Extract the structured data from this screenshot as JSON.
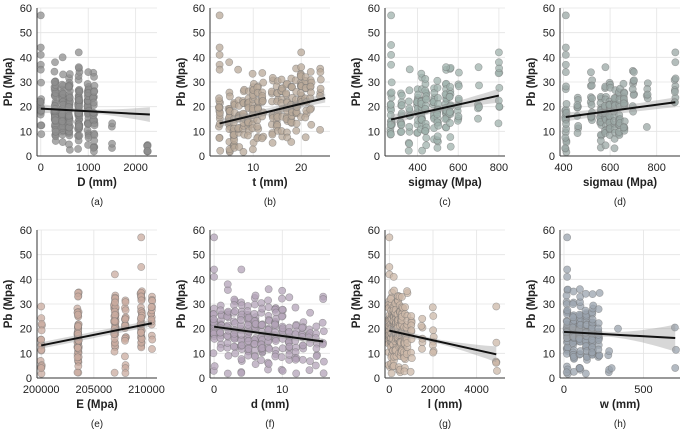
{
  "figure": {
    "ylabel": "Pb (Mpa)"
  },
  "chart_data": [
    {
      "type": "scatter",
      "panel": "(a)",
      "xlabel": "D (mm)",
      "ylabel": "Pb (Mpa)",
      "xlim": [
        -80,
        2450
      ],
      "ylim": [
        0,
        60
      ],
      "xticks": [
        0,
        1000,
        2000
      ],
      "yticks": [
        0,
        10,
        20,
        30,
        40,
        50,
        60
      ],
      "dot_color": "#8e8e8e",
      "clusters": [
        [
          0,
          20,
          15
        ],
        [
          300,
          20,
          48
        ],
        [
          460,
          18,
          45
        ],
        [
          600,
          18,
          42
        ],
        [
          800,
          19,
          55
        ],
        [
          1000,
          19,
          40
        ],
        [
          1120,
          18,
          25
        ],
        [
          1500,
          5,
          4
        ],
        [
          2250,
          3,
          4
        ]
      ],
      "points": [
        [
          0,
          57
        ],
        [
          0,
          44
        ],
        [
          0,
          41
        ],
        [
          0,
          37
        ],
        [
          0,
          35
        ],
        [
          300,
          38
        ],
        [
          460,
          40
        ],
        [
          800,
          42
        ],
        [
          800,
          36
        ],
        [
          1000,
          34
        ],
        [
          1120,
          26
        ],
        [
          2250,
          4
        ],
        [
          2250,
          2
        ]
      ],
      "fit": [
        [
          0,
          19.2
        ],
        [
          2300,
          16.8
        ]
      ],
      "ci": [
        0.7,
        3.0
      ]
    },
    {
      "type": "scatter",
      "panel": "(b)",
      "xlabel": "t (mm)",
      "ylabel": "Pb (Mpa)",
      "xlim": [
        1,
        26
      ],
      "ylim": [
        0,
        60
      ],
      "xticks": [
        10,
        20
      ],
      "yticks": [
        0,
        10,
        20,
        30,
        40,
        50,
        60
      ],
      "dot_color": "#b8a898",
      "clusters": [
        [
          3,
          14,
          15
        ],
        [
          5,
          12,
          18
        ],
        [
          6,
          13,
          18
        ],
        [
          7,
          14,
          12
        ],
        [
          8,
          16,
          15
        ],
        [
          9,
          17,
          15
        ],
        [
          10,
          18,
          18
        ],
        [
          11,
          19,
          15
        ],
        [
          12,
          20,
          12
        ],
        [
          14,
          18,
          12
        ],
        [
          15,
          18,
          15
        ],
        [
          16,
          19,
          12
        ],
        [
          17,
          19,
          15
        ],
        [
          18,
          20,
          15
        ],
        [
          19,
          21,
          15
        ],
        [
          20,
          22,
          15
        ],
        [
          21,
          23,
          12
        ],
        [
          22,
          23,
          10
        ],
        [
          24,
          24,
          6
        ]
      ],
      "points": [
        [
          3,
          57
        ],
        [
          3,
          44
        ],
        [
          3,
          41
        ],
        [
          3,
          37
        ],
        [
          3,
          35
        ],
        [
          5,
          38
        ],
        [
          20,
          42
        ],
        [
          20,
          36
        ],
        [
          24,
          34
        ]
      ],
      "fit": [
        [
          3,
          13.2
        ],
        [
          25,
          23.5
        ]
      ],
      "ci": [
        1.4,
        1.8
      ]
    },
    {
      "type": "scatter",
      "panel": "(c)",
      "xlabel": "sigmay (Mpa)",
      "ylabel": "Pb (Mpa)",
      "xlim": [
        240,
        830
      ],
      "ylim": [
        0,
        60
      ],
      "xticks": [
        400,
        600,
        800
      ],
      "yticks": [
        0,
        10,
        20,
        30,
        40,
        50,
        60
      ],
      "dot_color": "#9fb2ac",
      "clusters": [
        [
          270,
          15,
          20
        ],
        [
          320,
          15,
          14
        ],
        [
          360,
          18,
          12
        ],
        [
          400,
          18,
          14
        ],
        [
          420,
          19,
          20
        ],
        [
          440,
          20,
          18
        ],
        [
          480,
          20,
          14
        ],
        [
          500,
          18,
          18
        ],
        [
          540,
          19,
          22
        ],
        [
          560,
          20,
          16
        ],
        [
          600,
          20,
          10
        ],
        [
          700,
          23,
          6
        ],
        [
          800,
          25,
          8
        ]
      ],
      "points": [
        [
          270,
          57
        ],
        [
          270,
          45
        ],
        [
          270,
          41
        ],
        [
          270,
          37
        ],
        [
          800,
          42
        ],
        [
          800,
          38
        ],
        [
          700,
          36
        ],
        [
          540,
          36
        ]
      ],
      "fit": [
        [
          270,
          14.8
        ],
        [
          800,
          24.5
        ]
      ],
      "ci": [
        1.2,
        2.8
      ]
    },
    {
      "type": "scatter",
      "panel": "(d)",
      "xlabel": "sigmau (Mpa)",
      "ylabel": "Pb (Mpa)",
      "xlim": [
        385,
        900
      ],
      "ylim": [
        0,
        60
      ],
      "xticks": [
        400,
        600,
        800
      ],
      "yticks": [
        0,
        10,
        20,
        30,
        40,
        50,
        60
      ],
      "dot_color": "#9aa7a4",
      "clusters": [
        [
          410,
          14,
          20
        ],
        [
          460,
          16,
          10
        ],
        [
          520,
          17,
          14
        ],
        [
          560,
          18,
          18
        ],
        [
          580,
          17,
          20
        ],
        [
          600,
          18,
          22
        ],
        [
          620,
          18,
          16
        ],
        [
          640,
          19,
          16
        ],
        [
          660,
          20,
          14
        ],
        [
          700,
          22,
          10
        ],
        [
          760,
          23,
          6
        ],
        [
          880,
          22,
          8
        ]
      ],
      "points": [
        [
          410,
          57
        ],
        [
          410,
          44
        ],
        [
          410,
          41
        ],
        [
          410,
          37
        ],
        [
          410,
          34
        ],
        [
          880,
          42
        ],
        [
          880,
          38
        ],
        [
          580,
          36
        ]
      ],
      "fit": [
        [
          410,
          15.8
        ],
        [
          880,
          21.8
        ]
      ],
      "ci": [
        1.5,
        2.0
      ]
    },
    {
      "type": "scatter",
      "panel": "(e)",
      "xlabel": "E (Mpa)",
      "ylabel": "Pb (Mpa)",
      "xlim": [
        199600,
        211000
      ],
      "ylim": [
        0,
        60
      ],
      "xticks": [
        200000,
        205000,
        210000
      ],
      "yticks": [
        0,
        10,
        20,
        30,
        40,
        50,
        60
      ],
      "dot_color": "#c9ab9f",
      "clusters": [
        [
          200000,
          13,
          15
        ],
        [
          203500,
          18,
          60
        ],
        [
          207000,
          20,
          50
        ],
        [
          208000,
          18,
          18
        ],
        [
          209500,
          23,
          35
        ],
        [
          210500,
          22,
          15
        ]
      ],
      "points": [
        [
          200000,
          29
        ],
        [
          200000,
          4
        ],
        [
          203500,
          33
        ],
        [
          207000,
          42
        ],
        [
          209500,
          57
        ],
        [
          209500,
          45
        ],
        [
          208000,
          4
        ],
        [
          208000,
          2
        ]
      ],
      "fit": [
        [
          200000,
          13.2
        ],
        [
          210500,
          22.2
        ]
      ],
      "ci": [
        1.3,
        1.3
      ]
    },
    {
      "type": "scatter",
      "panel": "(f)",
      "xlabel": "d (mm)",
      "ylabel": "Pb (Mpa)",
      "xlim": [
        -0.6,
        17
      ],
      "ylim": [
        0,
        60
      ],
      "xticks": [
        0,
        10
      ],
      "yticks": [
        0,
        10,
        20,
        30,
        40,
        50,
        60
      ],
      "dot_color": "#b3a3b8",
      "clusters": [
        [
          0,
          20,
          20
        ],
        [
          1,
          20,
          16
        ],
        [
          2,
          19,
          16
        ],
        [
          3,
          19,
          18
        ],
        [
          4,
          19,
          20
        ],
        [
          5,
          18,
          22
        ],
        [
          6,
          18,
          22
        ],
        [
          7,
          18,
          20
        ],
        [
          8,
          17,
          20
        ],
        [
          9,
          17,
          18
        ],
        [
          10,
          17,
          16
        ],
        [
          11,
          16,
          14
        ],
        [
          12,
          16,
          12
        ],
        [
          13,
          15,
          10
        ],
        [
          14,
          15,
          8
        ],
        [
          15,
          15,
          8
        ],
        [
          16,
          15,
          6
        ]
      ],
      "points": [
        [
          0,
          57
        ],
        [
          0,
          44
        ],
        [
          0,
          41
        ],
        [
          2,
          38
        ],
        [
          4,
          44
        ],
        [
          8,
          36
        ],
        [
          16,
          33
        ],
        [
          16,
          32
        ]
      ],
      "fit": [
        [
          0,
          20.8
        ],
        [
          16,
          14.8
        ]
      ],
      "ci": [
        1.0,
        1.2
      ]
    },
    {
      "type": "scatter",
      "panel": "(g)",
      "xlabel": "l (mm)",
      "ylabel": "Pb (Mpa)",
      "xlim": [
        -200,
        5300
      ],
      "ylim": [
        0,
        60
      ],
      "xticks": [
        0,
        2000,
        4000
      ],
      "yticks": [
        0,
        10,
        20,
        30,
        40,
        50,
        60
      ],
      "dot_color": "#ccb8a8",
      "clusters": [
        [
          0,
          20,
          30
        ],
        [
          100,
          20,
          40
        ],
        [
          200,
          20,
          40
        ],
        [
          300,
          20,
          35
        ],
        [
          400,
          20,
          30
        ],
        [
          500,
          19,
          25
        ],
        [
          600,
          19,
          20
        ],
        [
          700,
          19,
          18
        ],
        [
          800,
          18,
          15
        ],
        [
          1000,
          18,
          10
        ],
        [
          1500,
          16,
          6
        ],
        [
          2000,
          17,
          8
        ],
        [
          4900,
          12,
          5
        ]
      ],
      "points": [
        [
          0,
          57
        ],
        [
          0,
          45
        ],
        [
          0,
          42
        ],
        [
          200,
          41
        ],
        [
          4900,
          29
        ]
      ],
      "fit": [
        [
          0,
          19.2
        ],
        [
          4900,
          9.6
        ]
      ],
      "ci": [
        0.8,
        3.2
      ]
    },
    {
      "type": "scatter",
      "panel": "(h)",
      "xlabel": "w (mm)",
      "ylabel": "Pb (Mpa)",
      "xlim": [
        -25,
        730
      ],
      "ylim": [
        0,
        60
      ],
      "xticks": [
        0,
        500
      ],
      "yticks": [
        0,
        10,
        20,
        30,
        40,
        50,
        60
      ],
      "dot_color": "#9aa3ad",
      "clusters": [
        [
          20,
          19,
          35
        ],
        [
          60,
          19,
          35
        ],
        [
          100,
          19,
          35
        ],
        [
          140,
          18,
          30
        ],
        [
          180,
          18,
          28
        ],
        [
          220,
          17,
          15
        ],
        [
          280,
          5,
          4
        ],
        [
          700,
          20,
          3
        ]
      ],
      "points": [
        [
          20,
          57
        ],
        [
          20,
          44
        ],
        [
          20,
          41
        ],
        [
          100,
          36
        ],
        [
          180,
          34
        ],
        [
          340,
          20
        ],
        [
          300,
          4
        ]
      ],
      "fit": [
        [
          0,
          18.7
        ],
        [
          700,
          16.2
        ]
      ],
      "ci": [
        1.0,
        5.5
      ]
    }
  ]
}
